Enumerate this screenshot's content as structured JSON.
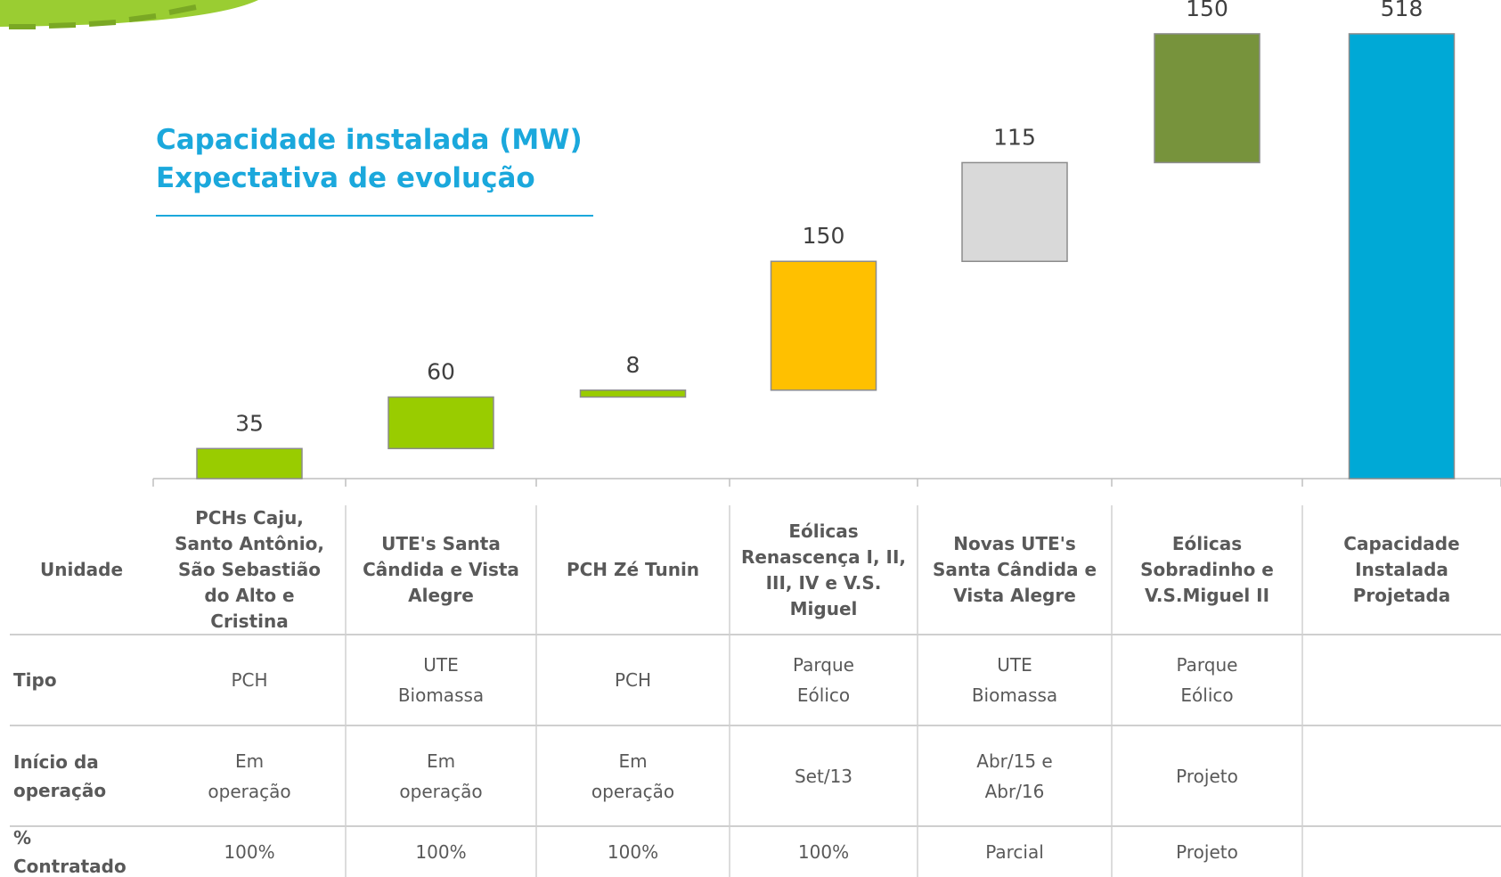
{
  "chart_data": {
    "type": "waterfall",
    "title": "Capacidade instalada (MW)",
    "subtitle": "Expectativa de evolução",
    "categories": [
      "PCHs Caju, Santo Antônio, São Sebastião do Alto e Cristina",
      "UTE's Santa Cândida e Vista Alegre",
      "PCH Zé Tunin",
      "Eólicas Renascença I, II, III, IV e V.S. Miguel",
      "Novas UTE's Santa Cândida e Vista Alegre",
      "Eólicas Sobradinho e V.S.Miguel II",
      "Capacidade Instalada Projetada"
    ],
    "values": [
      35,
      60,
      8,
      150,
      115,
      150,
      518
    ],
    "measures": [
      "relative",
      "relative",
      "relative",
      "relative",
      "relative",
      "relative",
      "total"
    ],
    "colors": [
      "#99cc00",
      "#99cc00",
      "#99cc00",
      "#ffc000",
      "#d9d9d9",
      "#77933c",
      "#00a9d6"
    ],
    "ylim": [
      0,
      520
    ]
  },
  "table": {
    "header": "Unidade",
    "rows": [
      {
        "label": "Tipo",
        "cells": [
          "PCH",
          "UTE Biomassa",
          "PCH",
          "Parque Eólico",
          "UTE Biomassa",
          "Parque Eólico"
        ]
      },
      {
        "label": "Início da operação",
        "cells": [
          "Em operação",
          "Em operação",
          "Em operação",
          "Set/13",
          "Abr/15 e Abr/16",
          "Projeto"
        ]
      },
      {
        "label": "% Contratado",
        "cells": [
          "100%",
          "100%",
          "100%",
          "100%",
          "Parcial",
          "Projeto"
        ]
      }
    ]
  }
}
